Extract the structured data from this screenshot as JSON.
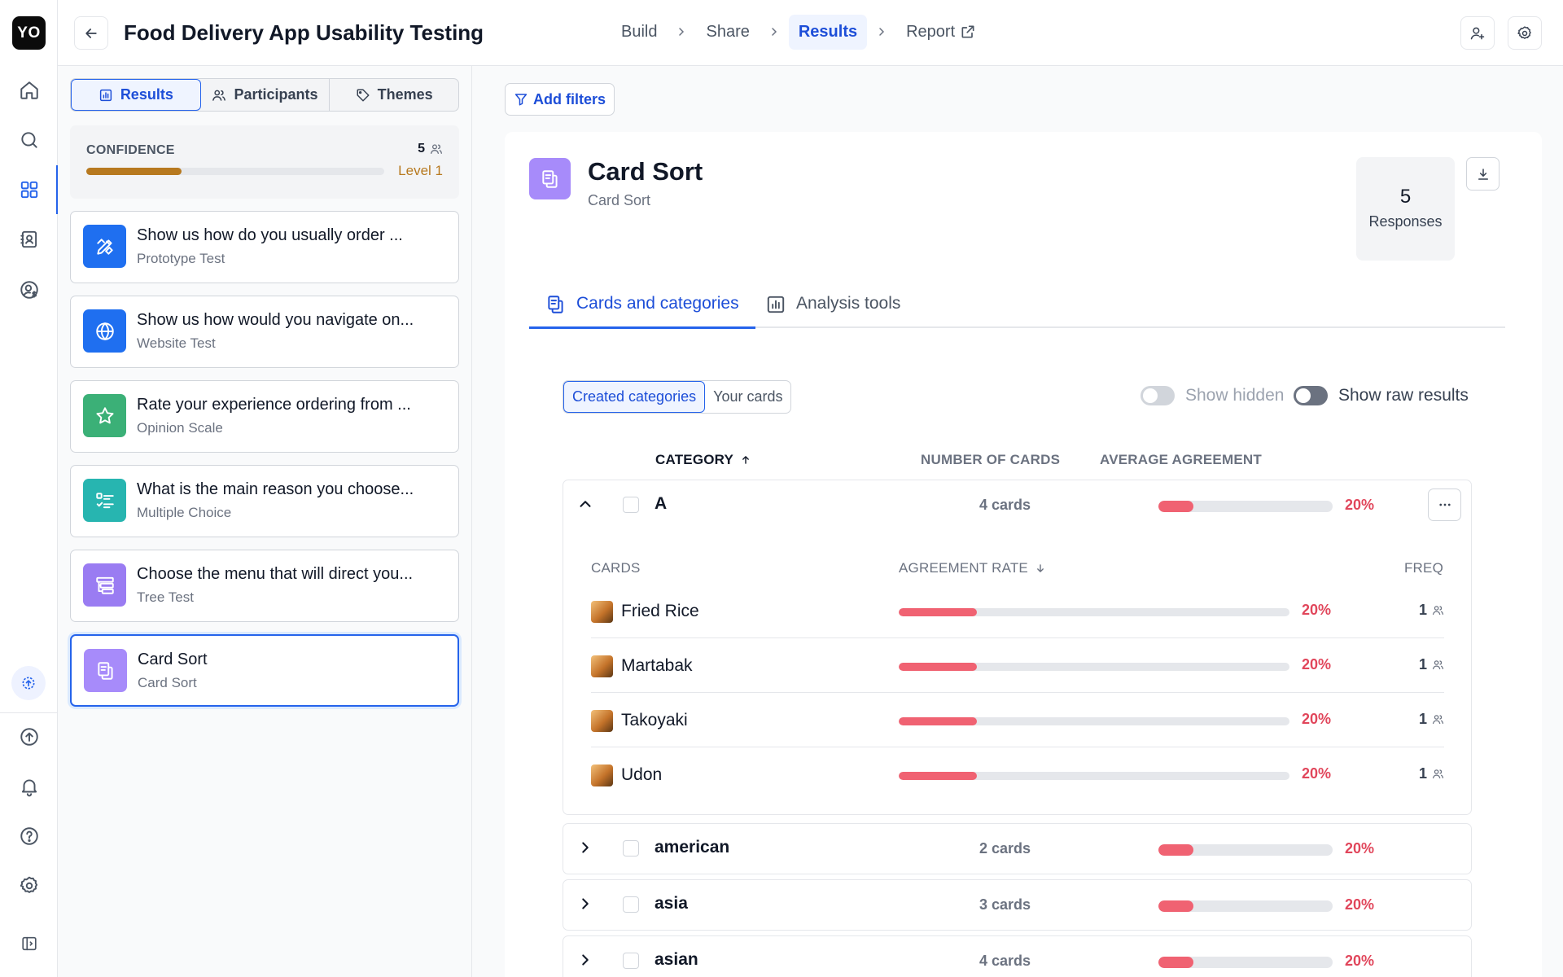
{
  "app": {
    "logo_text": "YO"
  },
  "header": {
    "project_title": "Food Delivery App Usability Testing",
    "steps": [
      {
        "label": "Build",
        "active": false
      },
      {
        "label": "Share",
        "active": false
      },
      {
        "label": "Results",
        "active": true
      },
      {
        "label": "Report",
        "active": false,
        "external": true
      }
    ]
  },
  "left_panel": {
    "tabs": [
      {
        "label": "Results",
        "icon": "chart-icon",
        "active": true
      },
      {
        "label": "Participants",
        "icon": "users-icon",
        "active": false
      },
      {
        "label": "Themes",
        "icon": "tag-icon",
        "active": false
      }
    ],
    "confidence": {
      "label": "CONFIDENCE",
      "count": "5",
      "level": "Level 1",
      "progress": 0.32,
      "color": "#b7791f"
    },
    "questions": [
      {
        "title": "Show us how do you usually order ...",
        "type": "Prototype Test",
        "icon": "prototype-icon",
        "color": "#1f6ff0",
        "active": false
      },
      {
        "title": "Show us how would you navigate on...",
        "type": "Website Test",
        "icon": "globe-icon",
        "color": "#1f6ff0",
        "active": false
      },
      {
        "title": "Rate your experience ordering from ...",
        "type": "Opinion Scale",
        "icon": "star-icon",
        "color": "#3bb077",
        "active": false
      },
      {
        "title": "What is the main reason you choose...",
        "type": "Multiple Choice",
        "icon": "list-check-icon",
        "color": "#27b5b0",
        "active": false
      },
      {
        "title": "Choose the menu that will direct you...",
        "type": "Tree Test",
        "icon": "tree-icon",
        "color": "#9a7cf2",
        "active": false
      },
      {
        "title": "Card Sort",
        "type": "Card Sort",
        "icon": "card-sort-icon",
        "color": "#a78bfa",
        "active": true
      }
    ]
  },
  "main": {
    "filter_label": "Add filters",
    "block": {
      "title": "Card Sort",
      "subtitle": "Card Sort",
      "responses_count": "5",
      "responses_label": "Responses"
    },
    "tabs": [
      {
        "label": "Cards and categories",
        "active": true
      },
      {
        "label": "Analysis tools",
        "active": false
      }
    ],
    "view_toggle": [
      {
        "label": "Created categories",
        "active": true
      },
      {
        "label": "Your cards",
        "active": false
      }
    ],
    "switches": [
      {
        "label": "Show hidden",
        "on": false
      },
      {
        "label": "Show raw results",
        "on": false
      }
    ],
    "columns": {
      "category": "CATEGORY",
      "num_cards": "NUMBER OF CARDS",
      "avg_agreement": "AVERAGE AGREEMENT"
    },
    "expanded_columns": {
      "cards": "CARDS",
      "agreement": "AGREEMENT RATE",
      "freq": "FREQ"
    },
    "categories": [
      {
        "name": "A",
        "count": "4 cards",
        "agreement": "20%",
        "agreement_value": 0.2,
        "expanded": true,
        "cards": [
          {
            "name": "Fried Rice",
            "rate": "20%",
            "rate_value": 0.2,
            "freq": "1"
          },
          {
            "name": "Martabak",
            "rate": "20%",
            "rate_value": 0.2,
            "freq": "1"
          },
          {
            "name": "Takoyaki",
            "rate": "20%",
            "rate_value": 0.2,
            "freq": "1"
          },
          {
            "name": "Udon",
            "rate": "20%",
            "rate_value": 0.2,
            "freq": "1"
          }
        ]
      },
      {
        "name": "american",
        "count": "2 cards",
        "agreement": "20%",
        "agreement_value": 0.2,
        "expanded": false
      },
      {
        "name": "asia",
        "count": "3 cards",
        "agreement": "20%",
        "agreement_value": 0.2,
        "expanded": false
      },
      {
        "name": "asian",
        "count": "4 cards",
        "agreement": "20%",
        "agreement_value": 0.2,
        "expanded": false
      }
    ],
    "colors": {
      "accent": "#2563eb",
      "agreement": "#f06272",
      "agreement_text": "#e1465b"
    }
  }
}
